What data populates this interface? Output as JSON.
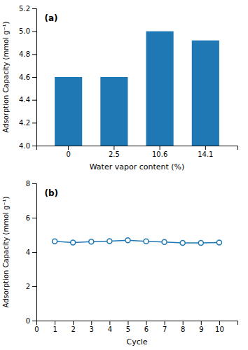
{
  "chart_data": [
    {
      "type": "bar",
      "categories": [
        "0",
        "2.5",
        "10.6",
        "14.1"
      ],
      "values": [
        4.6,
        4.6,
        5.0,
        4.92
      ],
      "x_label": "Water vapor content (%)",
      "y_label": "Adsorption Capacity (mmol g⁻¹)",
      "ylim": [
        4.0,
        5.2
      ],
      "yticks": [
        {
          "value": 4.0,
          "label": "4.0"
        },
        4.2,
        4.4,
        4.6,
        4.8,
        {
          "value": 5.0,
          "label": "5.0"
        },
        5.2
      ],
      "annotations": [
        "(a)"
      ]
    },
    {
      "type": "line",
      "x": [
        1,
        2,
        3,
        4,
        5,
        6,
        7,
        8,
        9,
        10
      ],
      "values": [
        4.62,
        4.55,
        4.6,
        4.63,
        4.68,
        4.62,
        4.58,
        4.53,
        4.53,
        4.55
      ],
      "x_label": "Cycle",
      "y_label": "Adsorption Capacity (mmol g⁻¹)",
      "xlim": [
        0,
        11
      ],
      "xticks": [
        0,
        1,
        2,
        3,
        4,
        5,
        6,
        7,
        8,
        9,
        10
      ],
      "ylim": [
        0,
        8
      ],
      "yticks": [
        0,
        2,
        4,
        6,
        8
      ],
      "marker": "circle",
      "annotations": [
        "(b)"
      ]
    }
  ]
}
